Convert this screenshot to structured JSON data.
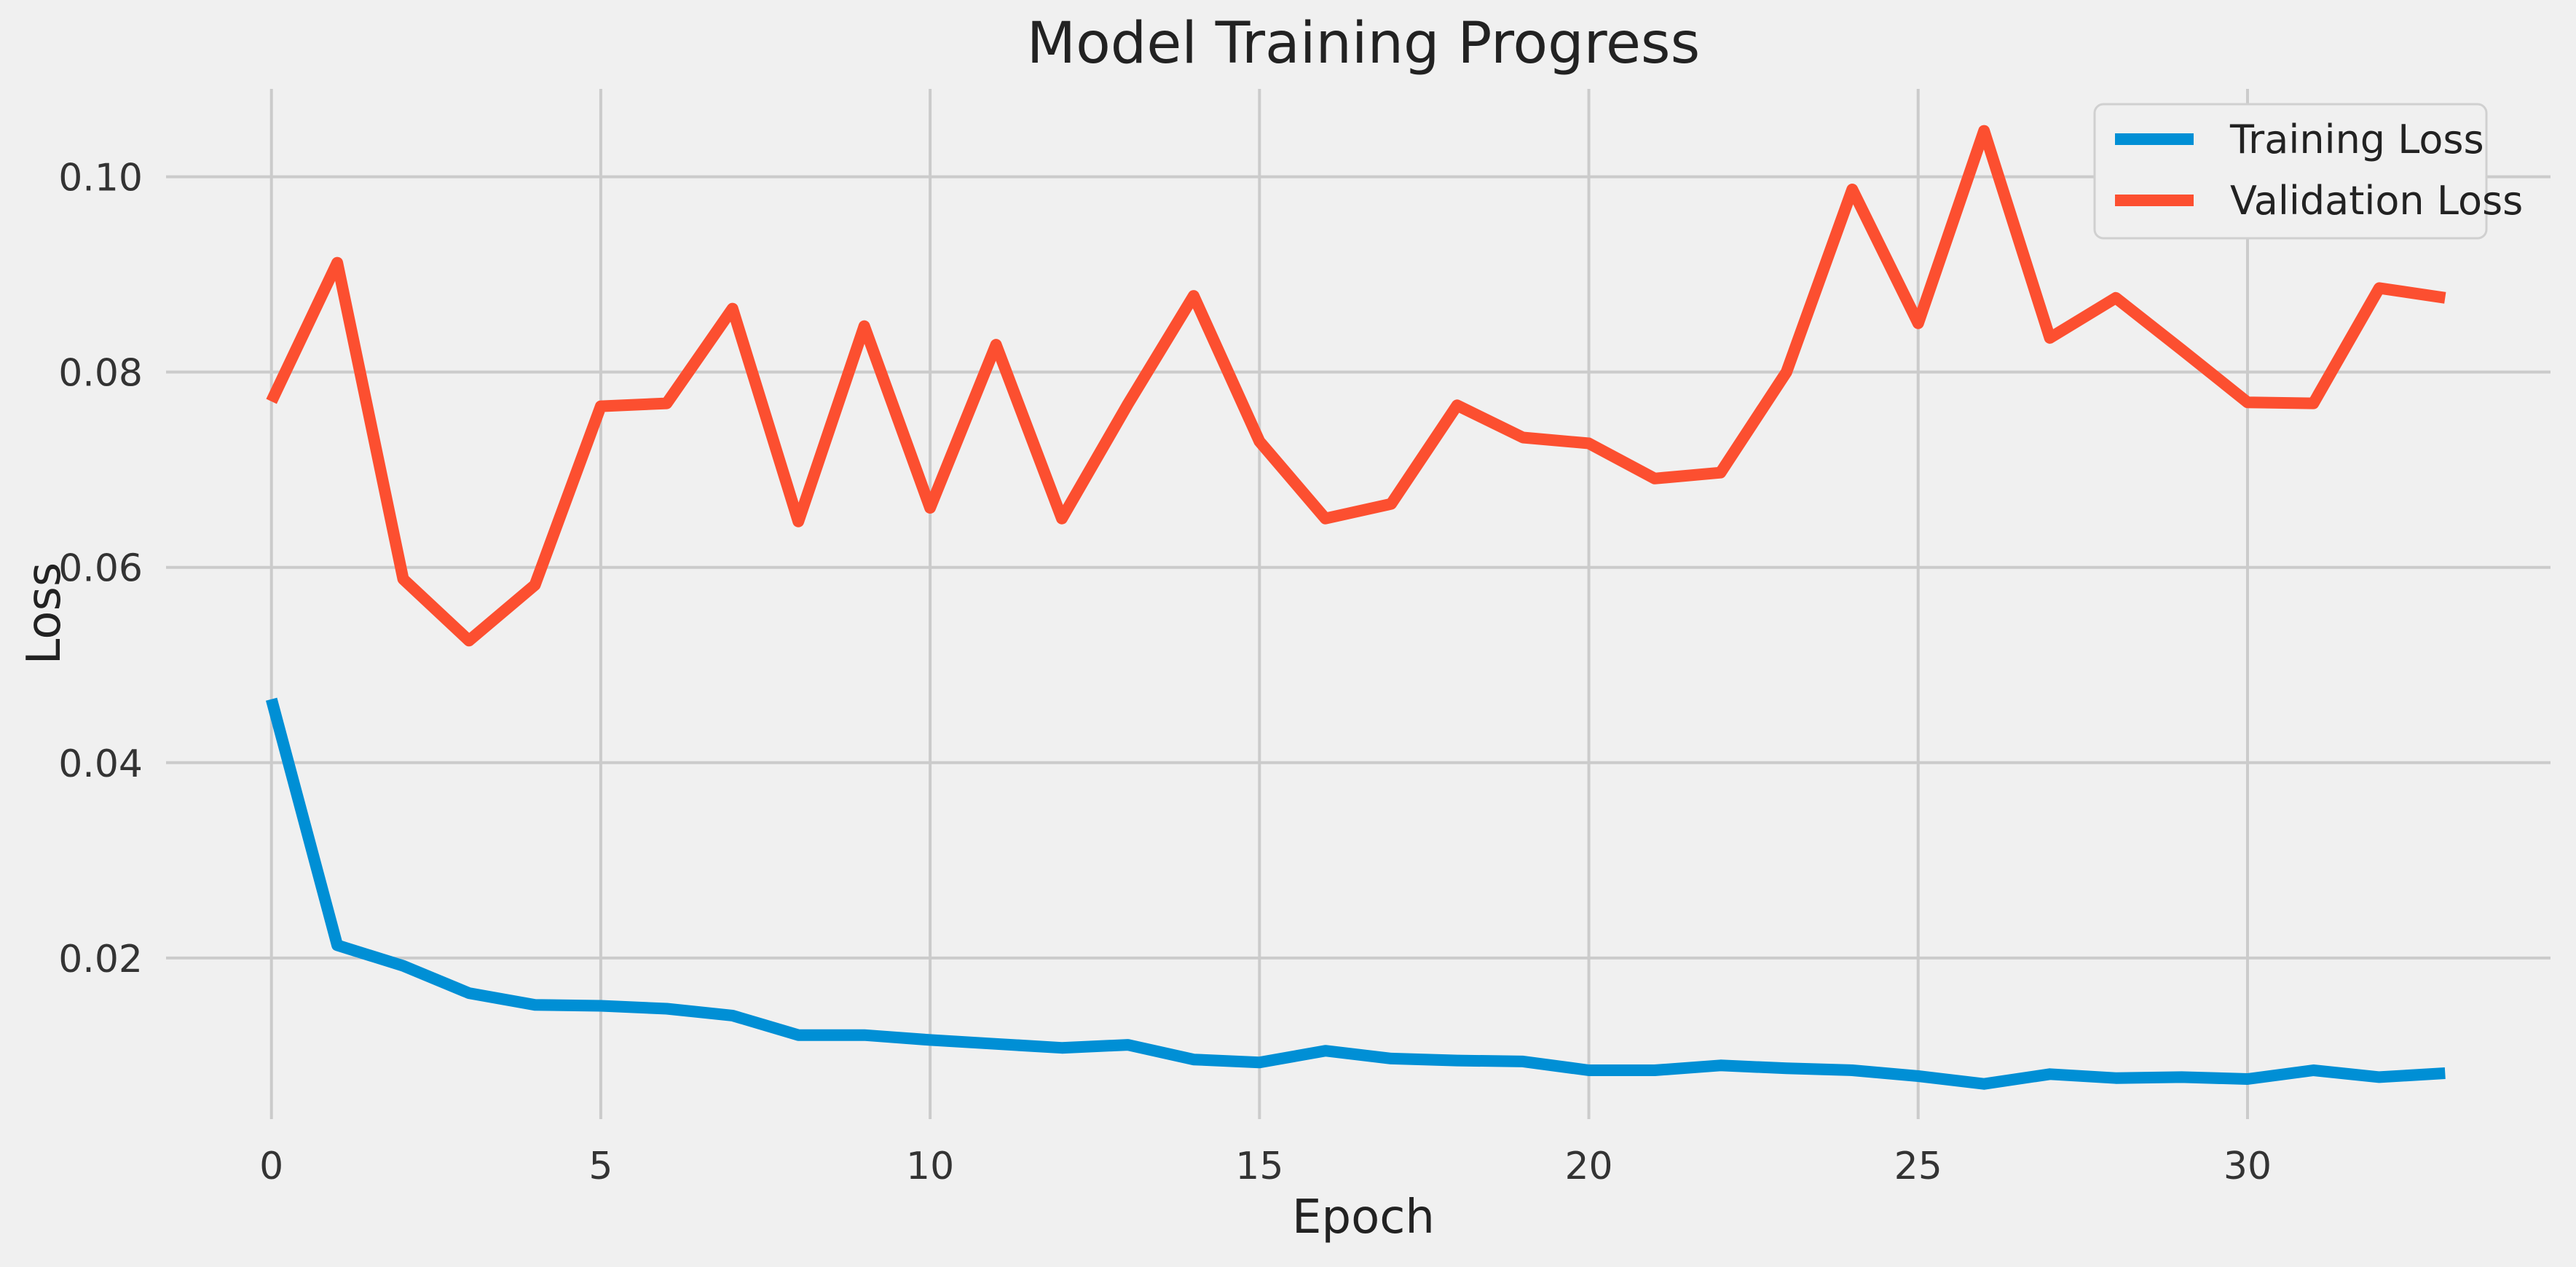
{
  "chart_data": {
    "type": "line",
    "title": "Model Training Progress",
    "xlabel": "Epoch",
    "ylabel": "Loss",
    "xlim": [
      -1.6,
      34.6
    ],
    "ylim": [
      0.0035,
      0.109
    ],
    "xticks": [
      0,
      5,
      10,
      15,
      20,
      25,
      30
    ],
    "yticks": [
      0.02,
      0.04,
      0.06,
      0.08,
      0.1
    ],
    "ytick_labels": [
      "0.02",
      "0.04",
      "0.06",
      "0.08",
      "0.10"
    ],
    "grid": true,
    "legend_position": "upper right",
    "x": [
      0,
      1,
      2,
      3,
      4,
      5,
      6,
      7,
      8,
      9,
      10,
      11,
      12,
      13,
      14,
      15,
      16,
      17,
      18,
      19,
      20,
      21,
      22,
      23,
      24,
      25,
      26,
      27,
      28,
      29,
      30,
      31,
      32,
      33
    ],
    "series": [
      {
        "name": "Training Loss",
        "color": "#008fd5",
        "values": [
          0.0465,
          0.0213,
          0.0192,
          0.0164,
          0.0152,
          0.0151,
          0.0148,
          0.0141,
          0.0121,
          0.0121,
          0.0116,
          0.0112,
          0.0108,
          0.0111,
          0.0096,
          0.0093,
          0.0105,
          0.0097,
          0.0095,
          0.0094,
          0.0085,
          0.0085,
          0.009,
          0.0087,
          0.0085,
          0.0079,
          0.0071,
          0.0081,
          0.0077,
          0.0078,
          0.0076,
          0.0085,
          0.0078,
          0.0082
        ]
      },
      {
        "name": "Validation Loss",
        "color": "#fc4f30",
        "values": [
          0.077,
          0.0912,
          0.0588,
          0.0525,
          0.0582,
          0.0765,
          0.0768,
          0.0865,
          0.0647,
          0.0847,
          0.0661,
          0.0828,
          0.065,
          0.0767,
          0.0878,
          0.0729,
          0.065,
          0.0665,
          0.0766,
          0.0733,
          0.0727,
          0.0691,
          0.0697,
          0.08,
          0.0987,
          0.085,
          0.1047,
          0.0835,
          0.0876,
          0.0823,
          0.0769,
          0.0768,
          0.0886,
          0.0876
        ]
      }
    ]
  }
}
